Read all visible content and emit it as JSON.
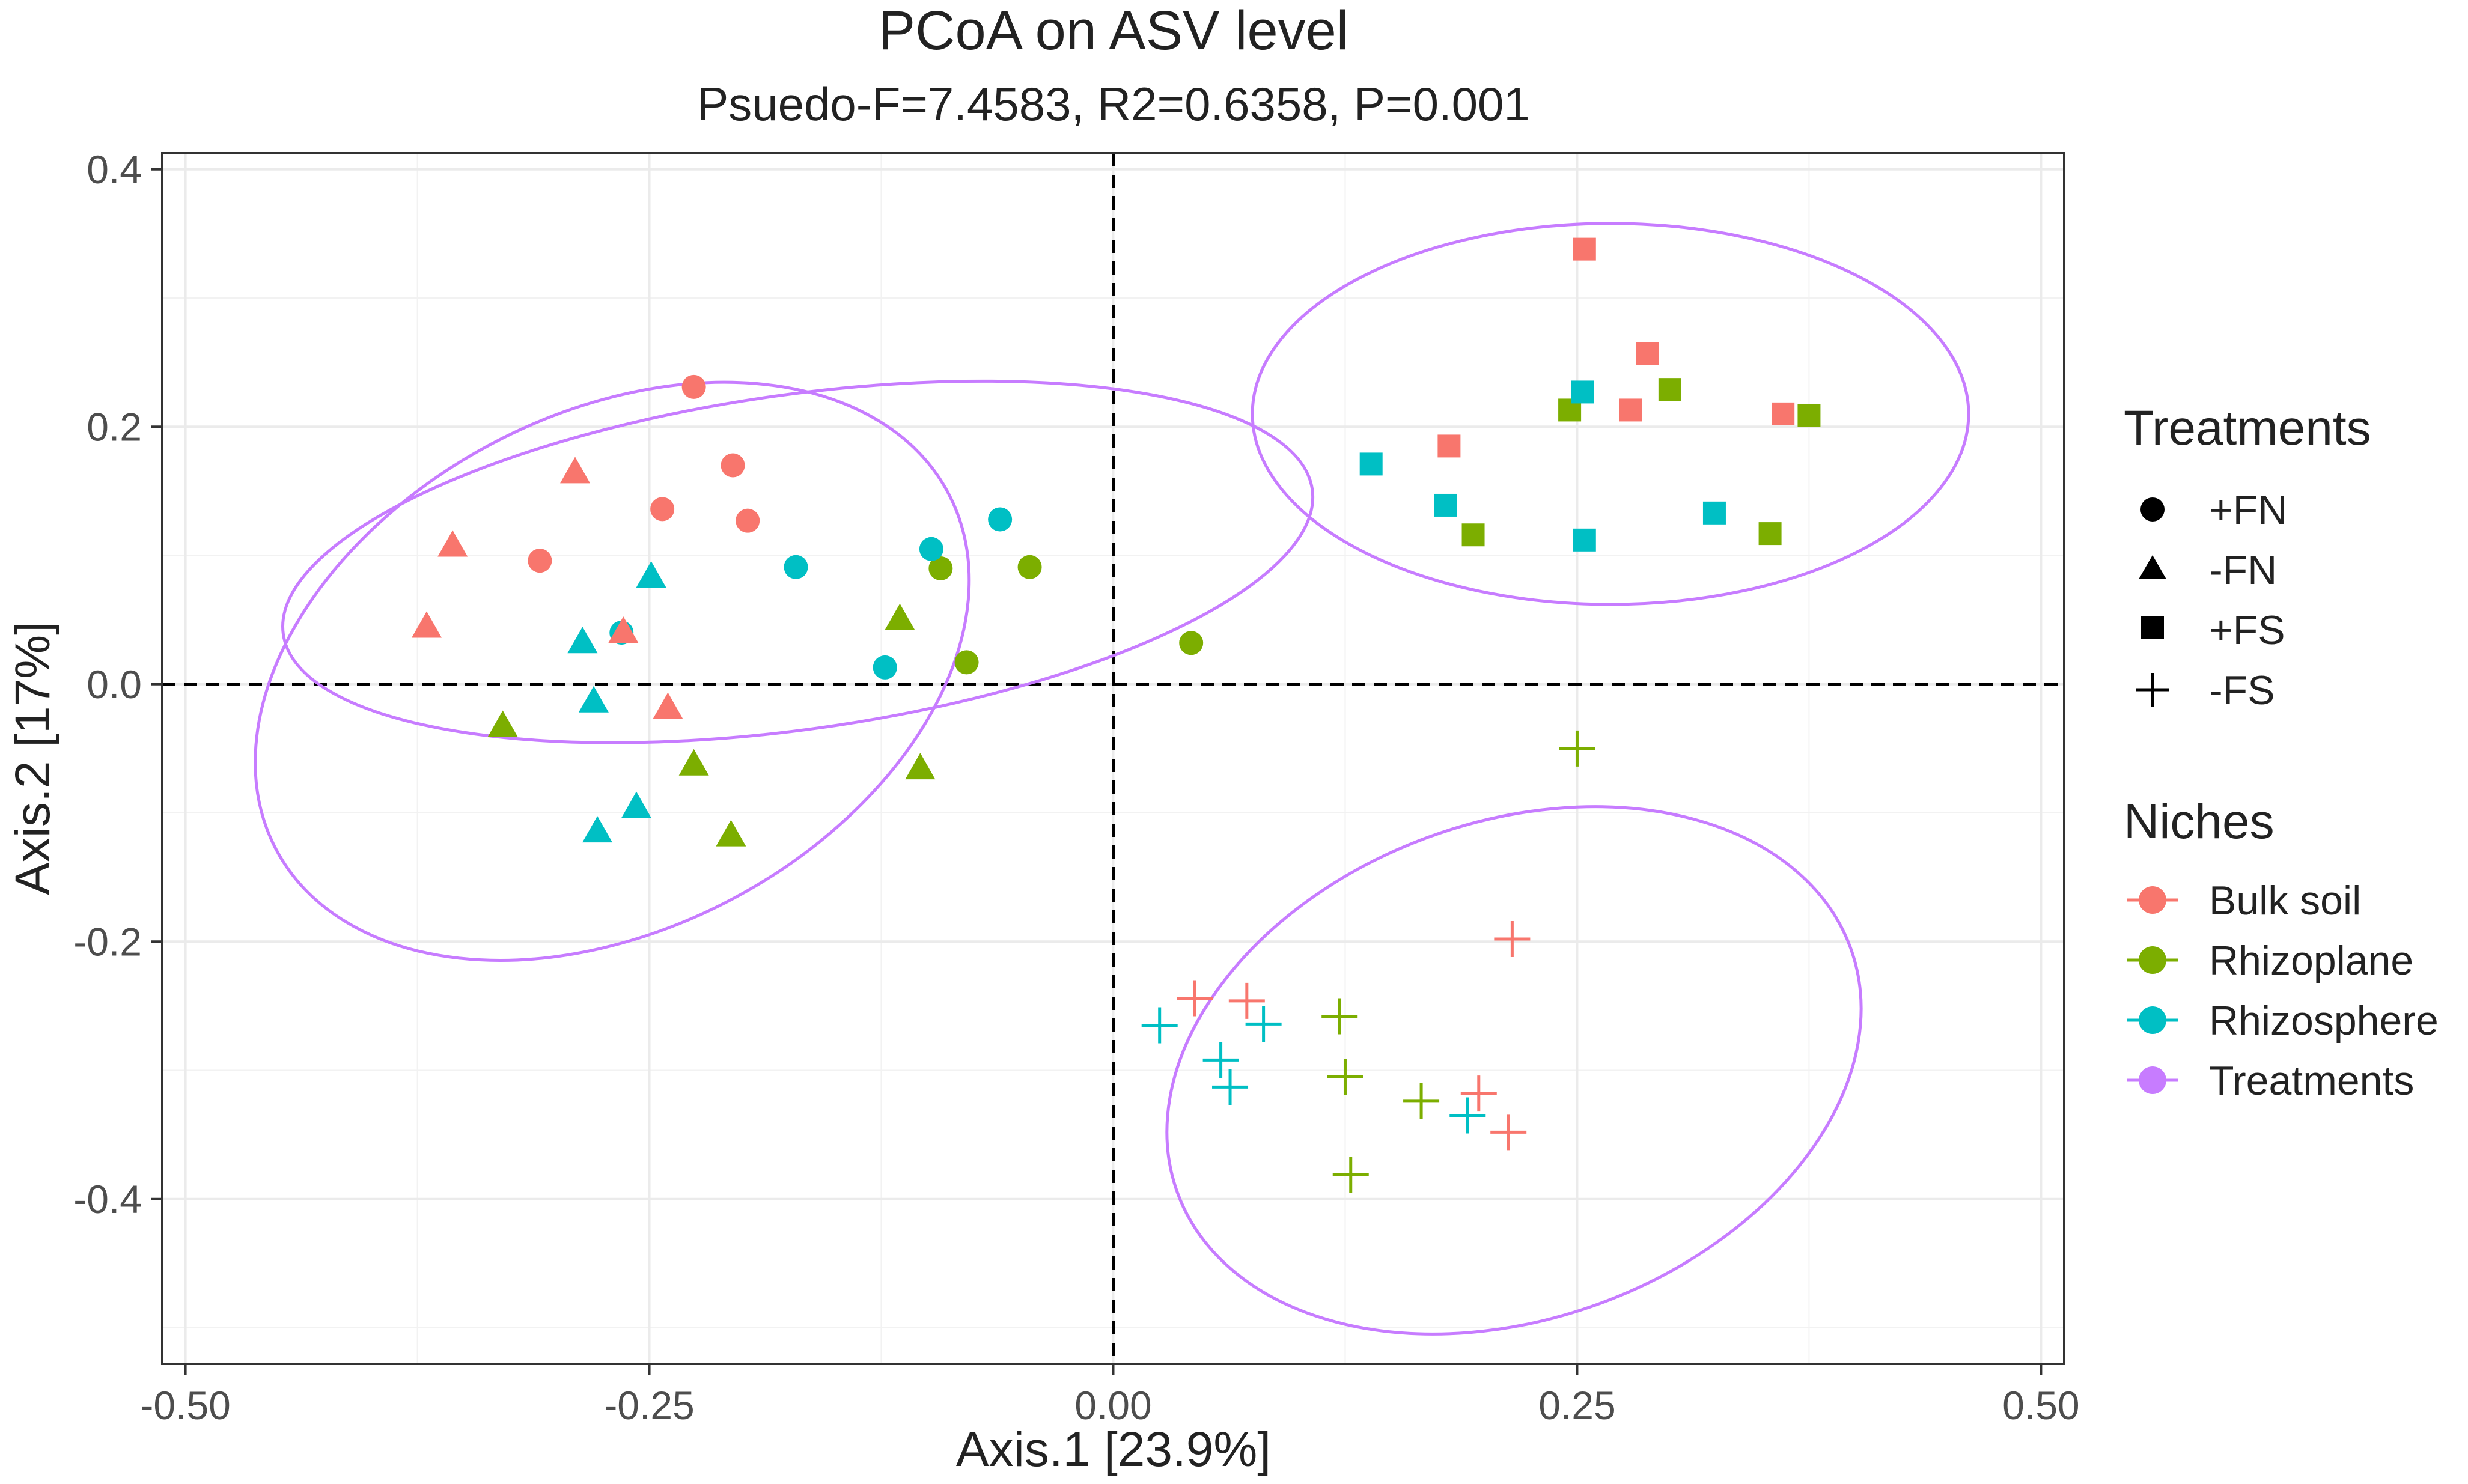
{
  "chart_data": {
    "type": "scatter",
    "title": "PCoA on ASV level",
    "subtitle": "Psuedo-F=7.4583, R2=0.6358, P=0.001",
    "xlabel": "Axis.1   [23.9%]",
    "ylabel": "Axis.2   [17%]",
    "xlim": [
      -0.5,
      0.5
    ],
    "ylim": [
      -0.5,
      0.4
    ],
    "xticks": [
      -0.5,
      -0.25,
      0,
      0.25,
      0.5
    ],
    "xtick_labels": [
      "-0.50",
      "-0.25",
      "0.00",
      "0.25",
      "0.50"
    ],
    "yticks": [
      0.4,
      0.2,
      0,
      -0.2,
      -0.4
    ],
    "ytick_labels": [
      "0.4",
      "0.2",
      "0.0",
      "-0.2",
      "-0.4"
    ],
    "grid": true,
    "reference_lines": {
      "x": 0,
      "y": 0,
      "style": "dashed"
    },
    "legend_position": "right",
    "colors": {
      "Bulk soil": "#F8766D",
      "Rhizoplane": "#7CAE00",
      "Rhizosphere": "#00BFC4",
      "Treatments": "#C77CFF"
    },
    "legend": {
      "treatments": {
        "title": "Treatments",
        "items": [
          "+FN",
          "-FN",
          "+FS",
          "-FS"
        ],
        "shapes": [
          "circle",
          "triangle",
          "square",
          "plus"
        ]
      },
      "niches": {
        "title": "Niches",
        "items": [
          "Bulk soil",
          "Rhizoplane",
          "Rhizosphere",
          "Treatments"
        ]
      }
    },
    "ellipses": [
      {
        "treatment": "+FN",
        "cx": -0.17,
        "cy": 0.095,
        "rx": 0.28,
        "ry": 0.13,
        "angle_deg": -8
      },
      {
        "treatment": "-FN",
        "cx": -0.27,
        "cy": 0.01,
        "rx": 0.205,
        "ry": 0.2,
        "angle_deg": -28
      },
      {
        "treatment": "+FS",
        "cx": 0.268,
        "cy": 0.21,
        "rx": 0.193,
        "ry": 0.148,
        "angle_deg": 0
      },
      {
        "treatment": "-FS",
        "cx": 0.216,
        "cy": -0.3,
        "rx": 0.193,
        "ry": 0.193,
        "angle_deg": -20
      }
    ],
    "series": [
      {
        "treatment": "+FN",
        "niche": "Bulk soil",
        "x": [
          -0.226,
          -0.205,
          -0.243,
          -0.309,
          -0.197
        ],
        "y": [
          0.231,
          0.17,
          0.136,
          0.096,
          0.127
        ]
      },
      {
        "treatment": "+FN",
        "niche": "Rhizoplane",
        "x": [
          -0.093,
          -0.045,
          -0.079,
          0.042
        ],
        "y": [
          0.09,
          0.091,
          0.017,
          0.032
        ]
      },
      {
        "treatment": "+FN",
        "niche": "Rhizosphere",
        "x": [
          -0.171,
          -0.098,
          -0.061,
          -0.123,
          -0.265
        ],
        "y": [
          0.091,
          0.105,
          0.128,
          0.013,
          0.04
        ]
      },
      {
        "treatment": "-FN",
        "niche": "Bulk soil",
        "x": [
          -0.29,
          -0.356,
          -0.37,
          -0.264,
          -0.24
        ],
        "y": [
          0.164,
          0.107,
          0.044,
          0.04,
          -0.019
        ]
      },
      {
        "treatment": "-FN",
        "niche": "Rhizoplane",
        "x": [
          -0.115,
          -0.329,
          -0.226,
          -0.206,
          -0.104
        ],
        "y": [
          0.05,
          -0.033,
          -0.063,
          -0.118,
          -0.066
        ]
      },
      {
        "treatment": "-FN",
        "niche": "Rhizosphere",
        "x": [
          -0.249,
          -0.286,
          -0.28,
          -0.278,
          -0.257
        ],
        "y": [
          0.083,
          0.032,
          -0.014,
          -0.115,
          -0.096
        ]
      },
      {
        "treatment": "+FS",
        "niche": "Bulk soil",
        "x": [
          0.254,
          0.288,
          0.279,
          0.181,
          0.361
        ],
        "y": [
          0.338,
          0.257,
          0.213,
          0.185,
          0.21
        ]
      },
      {
        "treatment": "+FS",
        "niche": "Rhizoplane",
        "x": [
          0.246,
          0.3,
          0.375,
          0.194,
          0.354
        ],
        "y": [
          0.213,
          0.229,
          0.209,
          0.116,
          0.117
        ]
      },
      {
        "treatment": "+FS",
        "niche": "Rhizosphere",
        "x": [
          0.253,
          0.139,
          0.179,
          0.254,
          0.324
        ],
        "y": [
          0.227,
          0.171,
          0.139,
          0.112,
          0.133
        ]
      },
      {
        "treatment": "-FS",
        "niche": "Bulk soil",
        "x": [
          0.215,
          0.044,
          0.072,
          0.197,
          0.213
        ],
        "y": [
          -0.198,
          -0.244,
          -0.246,
          -0.318,
          -0.348
        ]
      },
      {
        "treatment": "-FS",
        "niche": "Rhizoplane",
        "x": [
          0.25,
          0.122,
          0.125,
          0.166,
          0.128
        ],
        "y": [
          -0.05,
          -0.258,
          -0.305,
          -0.324,
          -0.381
        ]
      },
      {
        "treatment": "-FS",
        "niche": "Rhizosphere",
        "x": [
          0.025,
          0.081,
          0.058,
          0.063,
          0.191
        ],
        "y": [
          -0.265,
          -0.264,
          -0.292,
          -0.313,
          -0.335
        ]
      }
    ]
  }
}
